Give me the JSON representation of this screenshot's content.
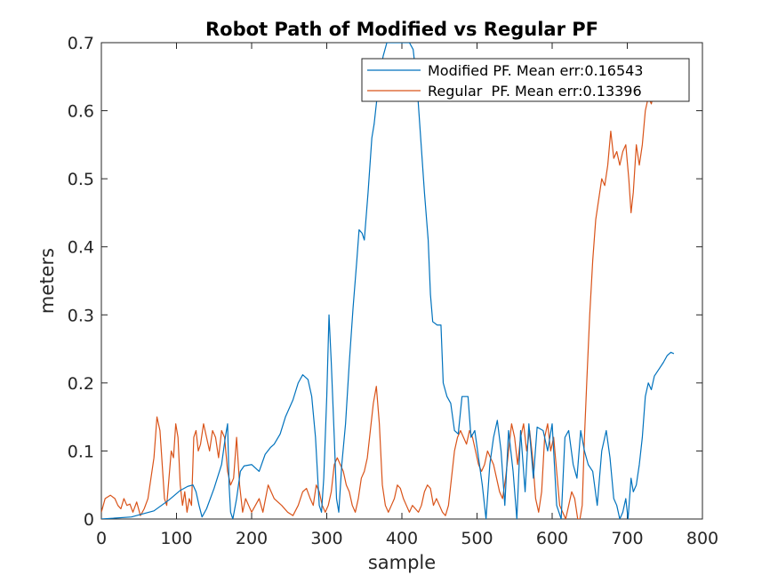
{
  "chart_data": {
    "type": "line",
    "title": "Robot Path of Modified vs Regular PF",
    "xlabel": "sample",
    "ylabel": "meters",
    "xlim": [
      0,
      800
    ],
    "ylim": [
      0,
      0.7
    ],
    "xticks": [
      0,
      100,
      200,
      300,
      400,
      500,
      600,
      700,
      800
    ],
    "yticks": [
      0,
      0.1,
      0.2,
      0.3,
      0.4,
      0.5,
      0.6,
      0.7
    ],
    "xtick_labels": [
      "0",
      "100",
      "200",
      "300",
      "400",
      "500",
      "600",
      "700",
      "800"
    ],
    "ytick_labels": [
      "0",
      "0.1",
      "0.2",
      "0.3",
      "0.4",
      "0.5",
      "0.6",
      "0.7"
    ],
    "grid": false,
    "legend_position": "top-right",
    "series": [
      {
        "name": "Modified PF. Mean err:0.16543",
        "color": "#0072BD",
        "points": [
          [
            0,
            0.0
          ],
          [
            40,
            0.003
          ],
          [
            70,
            0.012
          ],
          [
            90,
            0.028
          ],
          [
            105,
            0.042
          ],
          [
            115,
            0.048
          ],
          [
            122,
            0.05
          ],
          [
            126,
            0.04
          ],
          [
            130,
            0.02
          ],
          [
            134,
            0.003
          ],
          [
            140,
            0.015
          ],
          [
            150,
            0.045
          ],
          [
            160,
            0.08
          ],
          [
            165,
            0.12
          ],
          [
            168,
            0.14
          ],
          [
            170,
            0.05
          ],
          [
            172,
            0.01
          ],
          [
            175,
            0.0
          ],
          [
            180,
            0.03
          ],
          [
            185,
            0.07
          ],
          [
            190,
            0.078
          ],
          [
            200,
            0.08
          ],
          [
            210,
            0.07
          ],
          [
            218,
            0.095
          ],
          [
            225,
            0.105
          ],
          [
            230,
            0.11
          ],
          [
            238,
            0.125
          ],
          [
            245,
            0.15
          ],
          [
            255,
            0.175
          ],
          [
            262,
            0.2
          ],
          [
            268,
            0.212
          ],
          [
            275,
            0.205
          ],
          [
            280,
            0.18
          ],
          [
            285,
            0.12
          ],
          [
            290,
            0.02
          ],
          [
            293,
            0.01
          ],
          [
            296,
            0.06
          ],
          [
            300,
            0.18
          ],
          [
            303,
            0.3
          ],
          [
            306,
            0.23
          ],
          [
            310,
            0.12
          ],
          [
            313,
            0.03
          ],
          [
            316,
            0.01
          ],
          [
            320,
            0.08
          ],
          [
            325,
            0.14
          ],
          [
            330,
            0.23
          ],
          [
            335,
            0.31
          ],
          [
            340,
            0.38
          ],
          [
            343,
            0.425
          ],
          [
            347,
            0.42
          ],
          [
            350,
            0.41
          ],
          [
            355,
            0.48
          ],
          [
            360,
            0.56
          ],
          [
            363,
            0.58
          ],
          [
            366,
            0.61
          ],
          [
            370,
            0.65
          ],
          [
            375,
            0.68
          ],
          [
            380,
            0.7
          ],
          [
            385,
            0.7
          ],
          [
            390,
            0.7
          ],
          [
            395,
            0.7
          ],
          [
            400,
            0.7
          ],
          [
            405,
            0.7
          ],
          [
            410,
            0.7
          ],
          [
            415,
            0.69
          ],
          [
            420,
            0.64
          ],
          [
            425,
            0.56
          ],
          [
            430,
            0.48
          ],
          [
            435,
            0.41
          ],
          [
            438,
            0.33
          ],
          [
            441,
            0.29
          ],
          [
            447,
            0.285
          ],
          [
            452,
            0.285
          ],
          [
            455,
            0.2
          ],
          [
            460,
            0.18
          ],
          [
            465,
            0.17
          ],
          [
            470,
            0.13
          ],
          [
            475,
            0.125
          ],
          [
            480,
            0.18
          ],
          [
            488,
            0.18
          ],
          [
            492,
            0.12
          ],
          [
            497,
            0.13
          ],
          [
            502,
            0.09
          ],
          [
            507,
            0.05
          ],
          [
            512,
            0.0
          ],
          [
            517,
            0.08
          ],
          [
            522,
            0.12
          ],
          [
            527,
            0.145
          ],
          [
            532,
            0.1
          ],
          [
            537,
            0.02
          ],
          [
            542,
            0.13
          ],
          [
            548,
            0.07
          ],
          [
            553,
            0.0
          ],
          [
            558,
            0.13
          ],
          [
            564,
            0.04
          ],
          [
            569,
            0.14
          ],
          [
            575,
            0.06
          ],
          [
            580,
            0.135
          ],
          [
            588,
            0.13
          ],
          [
            594,
            0.1
          ],
          [
            600,
            0.14
          ],
          [
            606,
            0.02
          ],
          [
            612,
            0.0
          ],
          [
            617,
            0.12
          ],
          [
            622,
            0.13
          ],
          [
            628,
            0.08
          ],
          [
            633,
            0.06
          ],
          [
            638,
            0.13
          ],
          [
            643,
            0.1
          ],
          [
            648,
            0.08
          ],
          [
            654,
            0.07
          ],
          [
            660,
            0.02
          ],
          [
            666,
            0.1
          ],
          [
            672,
            0.13
          ],
          [
            677,
            0.09
          ],
          [
            682,
            0.03
          ],
          [
            686,
            0.02
          ],
          [
            690,
            0.0
          ],
          [
            694,
            0.01
          ],
          [
            698,
            0.03
          ],
          [
            701,
            0.0
          ],
          [
            705,
            0.06
          ],
          [
            708,
            0.04
          ],
          [
            712,
            0.05
          ],
          [
            716,
            0.08
          ],
          [
            720,
            0.12
          ],
          [
            724,
            0.18
          ],
          [
            728,
            0.2
          ],
          [
            732,
            0.19
          ],
          [
            736,
            0.21
          ],
          [
            742,
            0.22
          ],
          [
            748,
            0.23
          ],
          [
            753,
            0.24
          ],
          [
            758,
            0.245
          ],
          [
            762,
            0.243
          ]
        ]
      },
      {
        "name": "Regular  PF. Mean err:0.13396",
        "color": "#D95319",
        "points": [
          [
            0,
            0.01
          ],
          [
            5,
            0.03
          ],
          [
            12,
            0.035
          ],
          [
            18,
            0.03
          ],
          [
            22,
            0.02
          ],
          [
            26,
            0.015
          ],
          [
            30,
            0.03
          ],
          [
            34,
            0.02
          ],
          [
            38,
            0.022
          ],
          [
            42,
            0.01
          ],
          [
            47,
            0.025
          ],
          [
            52,
            0.005
          ],
          [
            57,
            0.015
          ],
          [
            62,
            0.03
          ],
          [
            66,
            0.06
          ],
          [
            70,
            0.09
          ],
          [
            74,
            0.15
          ],
          [
            78,
            0.13
          ],
          [
            81,
            0.08
          ],
          [
            84,
            0.03
          ],
          [
            87,
            0.02
          ],
          [
            90,
            0.06
          ],
          [
            93,
            0.1
          ],
          [
            96,
            0.09
          ],
          [
            99,
            0.14
          ],
          [
            102,
            0.12
          ],
          [
            105,
            0.05
          ],
          [
            108,
            0.02
          ],
          [
            111,
            0.04
          ],
          [
            114,
            0.01
          ],
          [
            117,
            0.03
          ],
          [
            120,
            0.02
          ],
          [
            123,
            0.12
          ],
          [
            126,
            0.13
          ],
          [
            129,
            0.1
          ],
          [
            132,
            0.11
          ],
          [
            136,
            0.14
          ],
          [
            140,
            0.12
          ],
          [
            144,
            0.1
          ],
          [
            148,
            0.13
          ],
          [
            152,
            0.12
          ],
          [
            156,
            0.09
          ],
          [
            160,
            0.13
          ],
          [
            164,
            0.12
          ],
          [
            168,
            0.07
          ],
          [
            172,
            0.05
          ],
          [
            176,
            0.06
          ],
          [
            180,
            0.12
          ],
          [
            184,
            0.05
          ],
          [
            188,
            0.01
          ],
          [
            192,
            0.03
          ],
          [
            196,
            0.02
          ],
          [
            200,
            0.01
          ],
          [
            205,
            0.02
          ],
          [
            210,
            0.03
          ],
          [
            215,
            0.01
          ],
          [
            222,
            0.05
          ],
          [
            230,
            0.03
          ],
          [
            240,
            0.02
          ],
          [
            248,
            0.01
          ],
          [
            255,
            0.005
          ],
          [
            262,
            0.02
          ],
          [
            268,
            0.04
          ],
          [
            273,
            0.045
          ],
          [
            278,
            0.03
          ],
          [
            282,
            0.02
          ],
          [
            286,
            0.05
          ],
          [
            290,
            0.04
          ],
          [
            294,
            0.02
          ],
          [
            298,
            0.01
          ],
          [
            302,
            0.02
          ],
          [
            306,
            0.04
          ],
          [
            310,
            0.08
          ],
          [
            314,
            0.09
          ],
          [
            318,
            0.08
          ],
          [
            322,
            0.07
          ],
          [
            326,
            0.05
          ],
          [
            330,
            0.04
          ],
          [
            334,
            0.02
          ],
          [
            338,
            0.01
          ],
          [
            342,
            0.03
          ],
          [
            346,
            0.06
          ],
          [
            350,
            0.07
          ],
          [
            354,
            0.09
          ],
          [
            358,
            0.13
          ],
          [
            362,
            0.17
          ],
          [
            366,
            0.195
          ],
          [
            370,
            0.14
          ],
          [
            374,
            0.05
          ],
          [
            378,
            0.02
          ],
          [
            382,
            0.01
          ],
          [
            386,
            0.02
          ],
          [
            390,
            0.03
          ],
          [
            394,
            0.05
          ],
          [
            398,
            0.045
          ],
          [
            402,
            0.03
          ],
          [
            406,
            0.02
          ],
          [
            410,
            0.01
          ],
          [
            414,
            0.02
          ],
          [
            418,
            0.015
          ],
          [
            422,
            0.01
          ],
          [
            426,
            0.02
          ],
          [
            430,
            0.04
          ],
          [
            434,
            0.05
          ],
          [
            438,
            0.045
          ],
          [
            442,
            0.02
          ],
          [
            446,
            0.03
          ],
          [
            450,
            0.02
          ],
          [
            454,
            0.01
          ],
          [
            458,
            0.005
          ],
          [
            462,
            0.02
          ],
          [
            466,
            0.06
          ],
          [
            470,
            0.1
          ],
          [
            474,
            0.12
          ],
          [
            478,
            0.13
          ],
          [
            482,
            0.12
          ],
          [
            486,
            0.11
          ],
          [
            490,
            0.13
          ],
          [
            494,
            0.12
          ],
          [
            498,
            0.1
          ],
          [
            502,
            0.08
          ],
          [
            506,
            0.07
          ],
          [
            510,
            0.08
          ],
          [
            514,
            0.1
          ],
          [
            518,
            0.09
          ],
          [
            522,
            0.08
          ],
          [
            526,
            0.06
          ],
          [
            530,
            0.04
          ],
          [
            534,
            0.03
          ],
          [
            538,
            0.06
          ],
          [
            542,
            0.1
          ],
          [
            546,
            0.14
          ],
          [
            550,
            0.12
          ],
          [
            554,
            0.08
          ],
          [
            558,
            0.12
          ],
          [
            562,
            0.14
          ],
          [
            566,
            0.1
          ],
          [
            570,
            0.13
          ],
          [
            574,
            0.09
          ],
          [
            578,
            0.03
          ],
          [
            582,
            0.01
          ],
          [
            586,
            0.04
          ],
          [
            590,
            0.12
          ],
          [
            594,
            0.14
          ],
          [
            598,
            0.1
          ],
          [
            602,
            0.12
          ],
          [
            606,
            0.07
          ],
          [
            610,
            0.02
          ],
          [
            614,
            0.01
          ],
          [
            618,
            0.0
          ],
          [
            622,
            0.02
          ],
          [
            626,
            0.04
          ],
          [
            630,
            0.03
          ],
          [
            634,
            0.0
          ],
          [
            637,
            0.0
          ],
          [
            640,
            0.02
          ],
          [
            643,
            0.12
          ],
          [
            646,
            0.2
          ],
          [
            650,
            0.3
          ],
          [
            654,
            0.38
          ],
          [
            658,
            0.44
          ],
          [
            662,
            0.47
          ],
          [
            666,
            0.5
          ],
          [
            670,
            0.49
          ],
          [
            674,
            0.52
          ],
          [
            678,
            0.57
          ],
          [
            682,
            0.53
          ],
          [
            686,
            0.54
          ],
          [
            690,
            0.52
          ],
          [
            694,
            0.54
          ],
          [
            698,
            0.55
          ],
          [
            702,
            0.5
          ],
          [
            705,
            0.45
          ],
          [
            708,
            0.48
          ],
          [
            712,
            0.55
          ],
          [
            716,
            0.52
          ],
          [
            720,
            0.55
          ],
          [
            724,
            0.6
          ],
          [
            728,
            0.62
          ],
          [
            732,
            0.61
          ],
          [
            736,
            0.63
          ],
          [
            740,
            0.64
          ],
          [
            744,
            0.65
          ],
          [
            748,
            0.66
          ]
        ]
      }
    ]
  }
}
